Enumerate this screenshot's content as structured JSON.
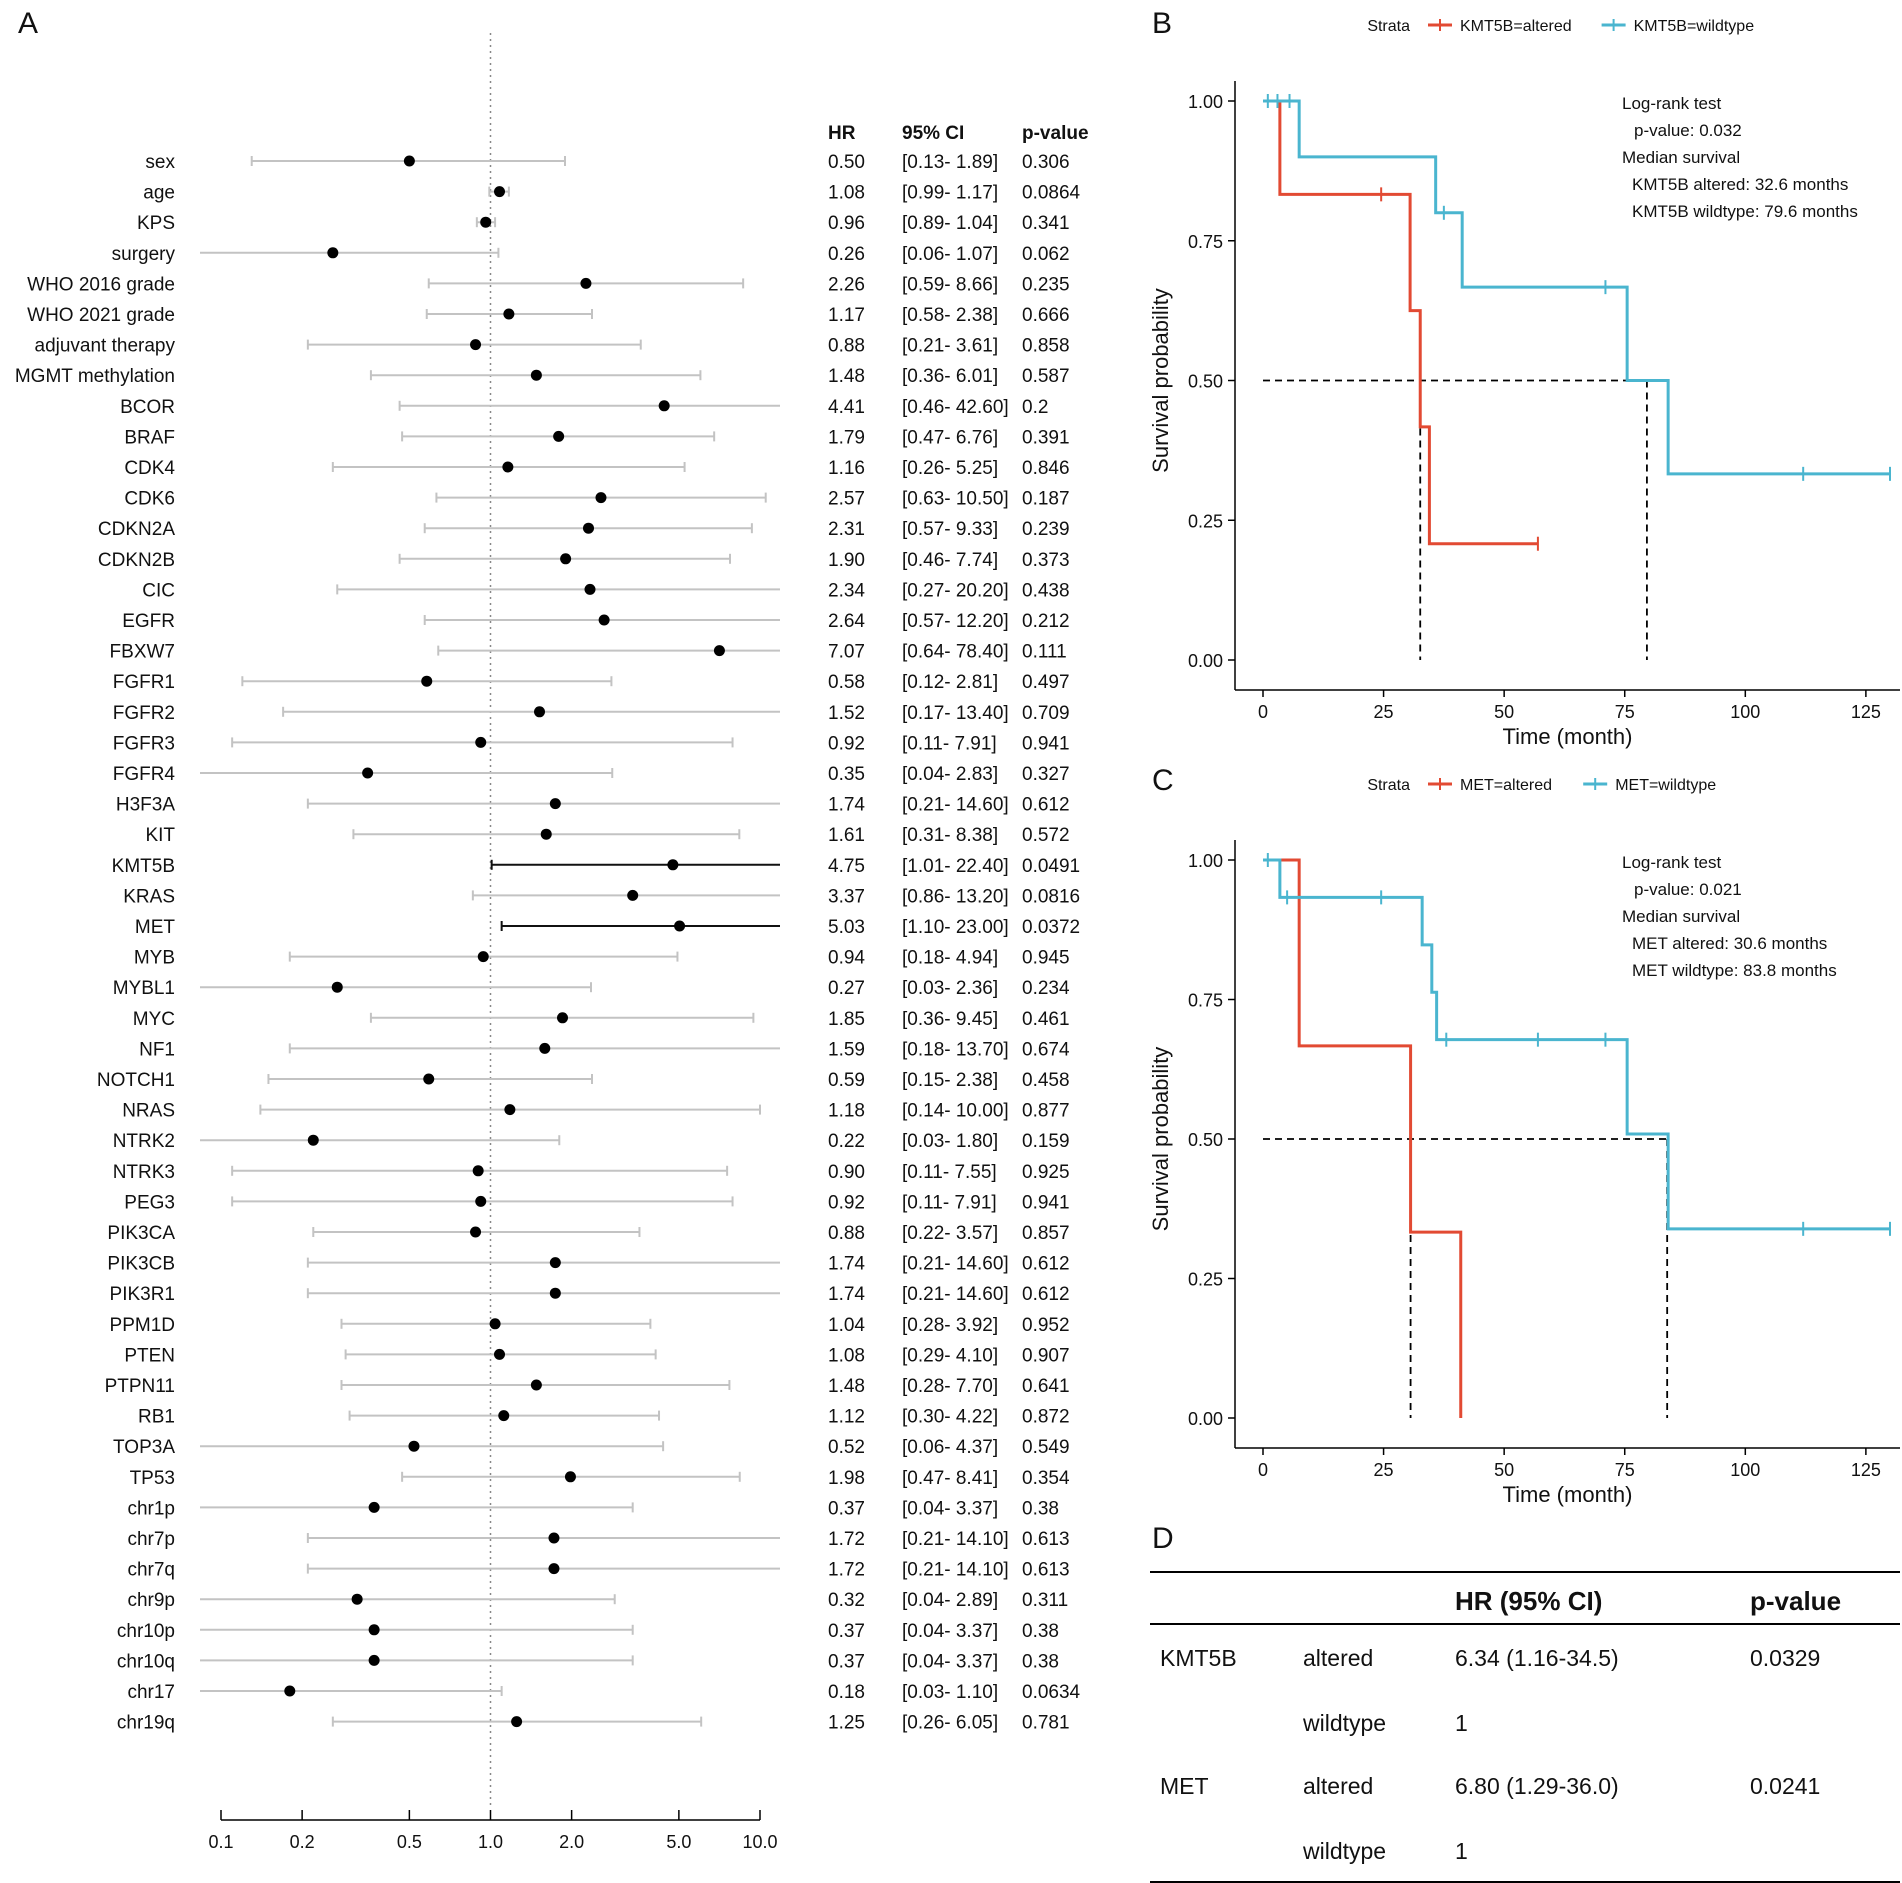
{
  "panels": {
    "a": "A",
    "b": "B",
    "c": "C",
    "d": "D"
  },
  "chart_data": [
    {
      "type": "forest",
      "panel": "A",
      "scale": "log",
      "reference_line": 1.0,
      "xlim": [
        0.1,
        10.0
      ],
      "xticks": [
        "0.1",
        "0.2",
        "0.5",
        "1.0",
        "2.0",
        "5.0",
        "10.0"
      ],
      "xtick_values": [
        0.1,
        0.2,
        0.5,
        1.0,
        2.0,
        5.0,
        10.0
      ],
      "columns": {
        "hr": "HR",
        "ci": "95% CI",
        "p": "p-value"
      },
      "rows": [
        {
          "label": "sex",
          "hr": 0.5,
          "lo": 0.13,
          "hi": 1.89,
          "hr_text": "0.50",
          "ci_text": "[0.13- 1.89]",
          "p_text": "0.306"
        },
        {
          "label": "age",
          "hr": 1.08,
          "lo": 0.99,
          "hi": 1.17,
          "hr_text": "1.08",
          "ci_text": "[0.99- 1.17]",
          "p_text": "0.0864"
        },
        {
          "label": "KPS",
          "hr": 0.96,
          "lo": 0.89,
          "hi": 1.04,
          "hr_text": "0.96",
          "ci_text": "[0.89- 1.04]",
          "p_text": "0.341"
        },
        {
          "label": "surgery",
          "hr": 0.26,
          "lo": 0.06,
          "hi": 1.07,
          "hr_text": "0.26",
          "ci_text": "[0.06- 1.07]",
          "p_text": "0.062"
        },
        {
          "label": "WHO 2016 grade",
          "hr": 2.26,
          "lo": 0.59,
          "hi": 8.66,
          "hr_text": "2.26",
          "ci_text": "[0.59- 8.66]",
          "p_text": "0.235"
        },
        {
          "label": "WHO 2021 grade",
          "hr": 1.17,
          "lo": 0.58,
          "hi": 2.38,
          "hr_text": "1.17",
          "ci_text": "[0.58- 2.38]",
          "p_text": "0.666"
        },
        {
          "label": "adjuvant therapy",
          "hr": 0.88,
          "lo": 0.21,
          "hi": 3.61,
          "hr_text": "0.88",
          "ci_text": "[0.21- 3.61]",
          "p_text": "0.858"
        },
        {
          "label": "MGMT methylation",
          "hr": 1.48,
          "lo": 0.36,
          "hi": 6.01,
          "hr_text": "1.48",
          "ci_text": "[0.36- 6.01]",
          "p_text": "0.587"
        },
        {
          "label": "BCOR",
          "hr": 4.41,
          "lo": 0.46,
          "hi": 42.6,
          "hr_text": "4.41",
          "ci_text": "[0.46- 42.60]",
          "p_text": "0.2"
        },
        {
          "label": "BRAF",
          "hr": 1.79,
          "lo": 0.47,
          "hi": 6.76,
          "hr_text": "1.79",
          "ci_text": "[0.47- 6.76]",
          "p_text": "0.391"
        },
        {
          "label": "CDK4",
          "hr": 1.16,
          "lo": 0.26,
          "hi": 5.25,
          "hr_text": "1.16",
          "ci_text": "[0.26- 5.25]",
          "p_text": "0.846"
        },
        {
          "label": "CDK6",
          "hr": 2.57,
          "lo": 0.63,
          "hi": 10.5,
          "hr_text": "2.57",
          "ci_text": "[0.63- 10.50]",
          "p_text": "0.187"
        },
        {
          "label": "CDKN2A",
          "hr": 2.31,
          "lo": 0.57,
          "hi": 9.33,
          "hr_text": "2.31",
          "ci_text": "[0.57- 9.33]",
          "p_text": "0.239"
        },
        {
          "label": "CDKN2B",
          "hr": 1.9,
          "lo": 0.46,
          "hi": 7.74,
          "hr_text": "1.90",
          "ci_text": "[0.46- 7.74]",
          "p_text": "0.373"
        },
        {
          "label": "CIC",
          "hr": 2.34,
          "lo": 0.27,
          "hi": 20.2,
          "hr_text": "2.34",
          "ci_text": "[0.27- 20.20]",
          "p_text": "0.438"
        },
        {
          "label": "EGFR",
          "hr": 2.64,
          "lo": 0.57,
          "hi": 12.2,
          "hr_text": "2.64",
          "ci_text": "[0.57- 12.20]",
          "p_text": "0.212"
        },
        {
          "label": "FBXW7",
          "hr": 7.07,
          "lo": 0.64,
          "hi": 78.4,
          "hr_text": "7.07",
          "ci_text": "[0.64- 78.40]",
          "p_text": "0.111"
        },
        {
          "label": "FGFR1",
          "hr": 0.58,
          "lo": 0.12,
          "hi": 2.81,
          "hr_text": "0.58",
          "ci_text": "[0.12- 2.81]",
          "p_text": "0.497"
        },
        {
          "label": "FGFR2",
          "hr": 1.52,
          "lo": 0.17,
          "hi": 13.4,
          "hr_text": "1.52",
          "ci_text": "[0.17- 13.40]",
          "p_text": "0.709"
        },
        {
          "label": "FGFR3",
          "hr": 0.92,
          "lo": 0.11,
          "hi": 7.91,
          "hr_text": "0.92",
          "ci_text": "[0.11- 7.91]",
          "p_text": "0.941"
        },
        {
          "label": "FGFR4",
          "hr": 0.35,
          "lo": 0.04,
          "hi": 2.83,
          "hr_text": "0.35",
          "ci_text": "[0.04- 2.83]",
          "p_text": "0.327"
        },
        {
          "label": "H3F3A",
          "hr": 1.74,
          "lo": 0.21,
          "hi": 14.6,
          "hr_text": "1.74",
          "ci_text": "[0.21- 14.60]",
          "p_text": "0.612"
        },
        {
          "label": "KIT",
          "hr": 1.61,
          "lo": 0.31,
          "hi": 8.38,
          "hr_text": "1.61",
          "ci_text": "[0.31- 8.38]",
          "p_text": "0.572"
        },
        {
          "label": "KMT5B",
          "hr": 4.75,
          "lo": 1.01,
          "hi": 22.4,
          "hr_text": "4.75",
          "ci_text": "[1.01- 22.40]",
          "p_text": "0.0491",
          "significant": true
        },
        {
          "label": "KRAS",
          "hr": 3.37,
          "lo": 0.86,
          "hi": 13.2,
          "hr_text": "3.37",
          "ci_text": "[0.86- 13.20]",
          "p_text": "0.0816"
        },
        {
          "label": "MET",
          "hr": 5.03,
          "lo": 1.1,
          "hi": 23.0,
          "hr_text": "5.03",
          "ci_text": "[1.10- 23.00]",
          "p_text": "0.0372",
          "significant": true
        },
        {
          "label": "MYB",
          "hr": 0.94,
          "lo": 0.18,
          "hi": 4.94,
          "hr_text": "0.94",
          "ci_text": "[0.18- 4.94]",
          "p_text": "0.945"
        },
        {
          "label": "MYBL1",
          "hr": 0.27,
          "lo": 0.03,
          "hi": 2.36,
          "hr_text": "0.27",
          "ci_text": "[0.03- 2.36]",
          "p_text": "0.234"
        },
        {
          "label": "MYC",
          "hr": 1.85,
          "lo": 0.36,
          "hi": 9.45,
          "hr_text": "1.85",
          "ci_text": "[0.36- 9.45]",
          "p_text": "0.461"
        },
        {
          "label": "NF1",
          "hr": 1.59,
          "lo": 0.18,
          "hi": 13.7,
          "hr_text": "1.59",
          "ci_text": "[0.18- 13.70]",
          "p_text": "0.674"
        },
        {
          "label": "NOTCH1",
          "hr": 0.59,
          "lo": 0.15,
          "hi": 2.38,
          "hr_text": "0.59",
          "ci_text": "[0.15- 2.38]",
          "p_text": "0.458"
        },
        {
          "label": "NRAS",
          "hr": 1.18,
          "lo": 0.14,
          "hi": 10.0,
          "hr_text": "1.18",
          "ci_text": "[0.14- 10.00]",
          "p_text": "0.877"
        },
        {
          "label": "NTRK2",
          "hr": 0.22,
          "lo": 0.03,
          "hi": 1.8,
          "hr_text": "0.22",
          "ci_text": "[0.03- 1.80]",
          "p_text": "0.159"
        },
        {
          "label": "NTRK3",
          "hr": 0.9,
          "lo": 0.11,
          "hi": 7.55,
          "hr_text": "0.90",
          "ci_text": "[0.11- 7.55]",
          "p_text": "0.925"
        },
        {
          "label": "PEG3",
          "hr": 0.92,
          "lo": 0.11,
          "hi": 7.91,
          "hr_text": "0.92",
          "ci_text": "[0.11- 7.91]",
          "p_text": "0.941"
        },
        {
          "label": "PIK3CA",
          "hr": 0.88,
          "lo": 0.22,
          "hi": 3.57,
          "hr_text": "0.88",
          "ci_text": "[0.22- 3.57]",
          "p_text": "0.857"
        },
        {
          "label": "PIK3CB",
          "hr": 1.74,
          "lo": 0.21,
          "hi": 14.6,
          "hr_text": "1.74",
          "ci_text": "[0.21- 14.60]",
          "p_text": "0.612"
        },
        {
          "label": "PIK3R1",
          "hr": 1.74,
          "lo": 0.21,
          "hi": 14.6,
          "hr_text": "1.74",
          "ci_text": "[0.21- 14.60]",
          "p_text": "0.612"
        },
        {
          "label": "PPM1D",
          "hr": 1.04,
          "lo": 0.28,
          "hi": 3.92,
          "hr_text": "1.04",
          "ci_text": "[0.28- 3.92]",
          "p_text": "0.952"
        },
        {
          "label": "PTEN",
          "hr": 1.08,
          "lo": 0.29,
          "hi": 4.1,
          "hr_text": "1.08",
          "ci_text": "[0.29- 4.10]",
          "p_text": "0.907"
        },
        {
          "label": "PTPN11",
          "hr": 1.48,
          "lo": 0.28,
          "hi": 7.7,
          "hr_text": "1.48",
          "ci_text": "[0.28- 7.70]",
          "p_text": "0.641"
        },
        {
          "label": "RB1",
          "hr": 1.12,
          "lo": 0.3,
          "hi": 4.22,
          "hr_text": "1.12",
          "ci_text": "[0.30- 4.22]",
          "p_text": "0.872"
        },
        {
          "label": "TOP3A",
          "hr": 0.52,
          "lo": 0.06,
          "hi": 4.37,
          "hr_text": "0.52",
          "ci_text": "[0.06- 4.37]",
          "p_text": "0.549"
        },
        {
          "label": "TP53",
          "hr": 1.98,
          "lo": 0.47,
          "hi": 8.41,
          "hr_text": "1.98",
          "ci_text": "[0.47- 8.41]",
          "p_text": "0.354"
        },
        {
          "label": "chr1p",
          "hr": 0.37,
          "lo": 0.04,
          "hi": 3.37,
          "hr_text": "0.37",
          "ci_text": "[0.04- 3.37]",
          "p_text": "0.38"
        },
        {
          "label": "chr7p",
          "hr": 1.72,
          "lo": 0.21,
          "hi": 14.1,
          "hr_text": "1.72",
          "ci_text": "[0.21- 14.10]",
          "p_text": "0.613"
        },
        {
          "label": "chr7q",
          "hr": 1.72,
          "lo": 0.21,
          "hi": 14.1,
          "hr_text": "1.72",
          "ci_text": "[0.21- 14.10]",
          "p_text": "0.613"
        },
        {
          "label": "chr9p",
          "hr": 0.32,
          "lo": 0.04,
          "hi": 2.89,
          "hr_text": "0.32",
          "ci_text": "[0.04- 2.89]",
          "p_text": "0.311"
        },
        {
          "label": "chr10p",
          "hr": 0.37,
          "lo": 0.04,
          "hi": 3.37,
          "hr_text": "0.37",
          "ci_text": "[0.04- 3.37]",
          "p_text": "0.38"
        },
        {
          "label": "chr10q",
          "hr": 0.37,
          "lo": 0.04,
          "hi": 3.37,
          "hr_text": "0.37",
          "ci_text": "[0.04- 3.37]",
          "p_text": "0.38"
        },
        {
          "label": "chr17",
          "hr": 0.18,
          "lo": 0.03,
          "hi": 1.1,
          "hr_text": "0.18",
          "ci_text": "[0.03- 1.10]",
          "p_text": "0.0634"
        },
        {
          "label": "chr19q",
          "hr": 1.25,
          "lo": 0.26,
          "hi": 6.05,
          "hr_text": "1.25",
          "ci_text": "[0.26- 6.05]",
          "p_text": "0.781"
        }
      ]
    },
    {
      "type": "kaplan-meier",
      "panel": "B",
      "legend_title": "Strata",
      "xlabel": "Time (month)",
      "ylabel": "Survival probability",
      "xlim": [
        0,
        130
      ],
      "ylim": [
        0,
        1
      ],
      "xticks": [
        0,
        25,
        50,
        75,
        100,
        125
      ],
      "xtick_labels": [
        "0",
        "25",
        "50",
        "75",
        "100",
        "125"
      ],
      "yticks": [
        0,
        0.25,
        0.5,
        0.75,
        1
      ],
      "ytick_labels": [
        "0.00",
        "0.25",
        "0.50",
        "0.75",
        "1.00"
      ],
      "annotation": [
        "Log-rank test",
        "p-value: 0.032",
        "Median survival",
        "KMT5B altered: 32.6 months",
        "KMT5B wildtype: 79.6 months"
      ],
      "median_lines": [
        32.6,
        79.6
      ],
      "series": [
        {
          "name": "KMT5B=altered",
          "color": "#E24A33",
          "steps": [
            [
              0,
              1
            ],
            [
              3.5,
              0.833
            ],
            [
              30.5,
              0.625
            ],
            [
              32.6,
              0.417
            ],
            [
              34.5,
              0.208
            ],
            [
              57,
              0.208
            ]
          ],
          "censor": [
            [
              24.5,
              0.833
            ],
            [
              57,
              0.208
            ]
          ]
        },
        {
          "name": "KMT5B=wildtype",
          "color": "#4AB5CF",
          "steps": [
            [
              0,
              1
            ],
            [
              7.5,
              0.9
            ],
            [
              35.8,
              0.8
            ],
            [
              41.3,
              0.667
            ],
            [
              75.5,
              0.5
            ],
            [
              84,
              0.333
            ],
            [
              130,
              0.333
            ]
          ],
          "censor": [
            [
              1,
              1
            ],
            [
              3,
              1
            ],
            [
              5.5,
              1
            ],
            [
              37.5,
              0.8
            ],
            [
              71,
              0.667
            ],
            [
              112,
              0.333
            ],
            [
              130,
              0.333
            ]
          ]
        }
      ]
    },
    {
      "type": "kaplan-meier",
      "panel": "C",
      "legend_title": "Strata",
      "xlabel": "Time (month)",
      "ylabel": "Survival probability",
      "xlim": [
        0,
        130
      ],
      "ylim": [
        0,
        1
      ],
      "xticks": [
        0,
        25,
        50,
        75,
        100,
        125
      ],
      "xtick_labels": [
        "0",
        "25",
        "50",
        "75",
        "100",
        "125"
      ],
      "yticks": [
        0,
        0.25,
        0.5,
        0.75,
        1
      ],
      "ytick_labels": [
        "0.00",
        "0.25",
        "0.50",
        "0.75",
        "1.00"
      ],
      "annotation": [
        "Log-rank test",
        "p-value: 0.021",
        "Median survival",
        "MET altered: 30.6 months",
        "MET wildtype: 83.8 months"
      ],
      "median_lines": [
        30.6,
        83.8
      ],
      "series": [
        {
          "name": "MET=altered",
          "color": "#E24A33",
          "steps": [
            [
              0,
              1
            ],
            [
              7.5,
              0.667
            ],
            [
              30.6,
              0.333
            ],
            [
              41,
              0
            ]
          ],
          "censor": []
        },
        {
          "name": "MET=wildtype",
          "color": "#4AB5CF",
          "steps": [
            [
              0,
              1
            ],
            [
              3.5,
              0.933
            ],
            [
              33,
              0.848
            ],
            [
              35,
              0.763
            ],
            [
              36,
              0.678
            ],
            [
              75.5,
              0.509
            ],
            [
              84,
              0.339
            ],
            [
              130,
              0.339
            ]
          ],
          "censor": [
            [
              1,
              1
            ],
            [
              5,
              0.933
            ],
            [
              24.5,
              0.933
            ],
            [
              38,
              0.678
            ],
            [
              57,
              0.678
            ],
            [
              71,
              0.678
            ],
            [
              112,
              0.339
            ],
            [
              130,
              0.339
            ]
          ]
        }
      ]
    }
  ],
  "table_d": {
    "headers": [
      "",
      "",
      "HR (95% CI)",
      "p-value"
    ],
    "rows": [
      [
        "KMT5B",
        "altered",
        "6.34 (1.16-34.5)",
        "0.0329"
      ],
      [
        "",
        "wildtype",
        "1",
        ""
      ],
      [
        "MET",
        "altered",
        "6.80 (1.29-36.0)",
        "0.0241"
      ],
      [
        "",
        "wildtype",
        "1",
        ""
      ]
    ]
  }
}
